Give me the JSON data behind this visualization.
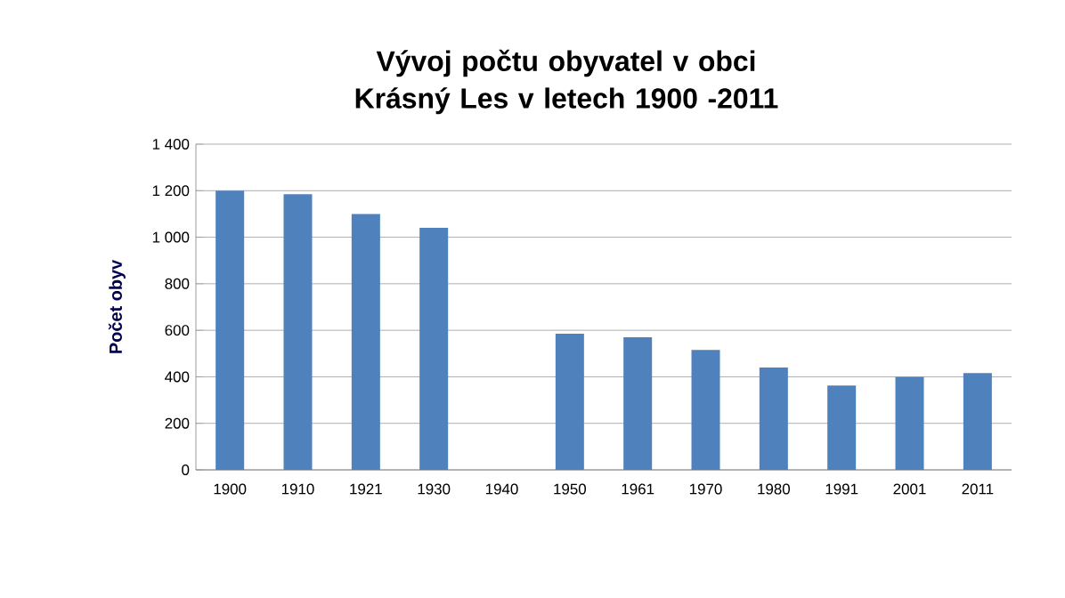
{
  "chart_data": {
    "type": "bar",
    "title": "Vývoj počtu obyvatel v obci Krásný Les v letech 1900 -2011",
    "ylabel": "Počet obyv",
    "categories": [
      "1900",
      "1910",
      "1921",
      "1930",
      "1940",
      "1950",
      "1961",
      "1970",
      "1980",
      "1991",
      "2001",
      "2011"
    ],
    "values": [
      1200,
      1185,
      1100,
      1040,
      null,
      585,
      570,
      515,
      440,
      362,
      400,
      416
    ],
    "color": "#4f81bd",
    "ylim": [
      0,
      1400
    ],
    "yticks": [
      0,
      200,
      400,
      600,
      800,
      {
        "value": 1000,
        "label": "1 000"
      },
      {
        "value": 1200,
        "label": "1 200"
      },
      {
        "value": 1400,
        "label": "1 400"
      }
    ],
    "grid": "y"
  }
}
